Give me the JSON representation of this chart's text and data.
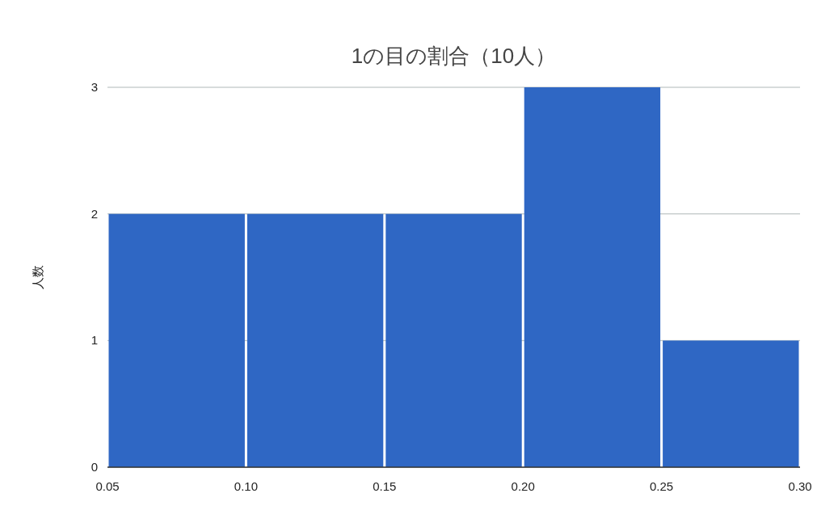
{
  "chart_data": {
    "type": "histogram",
    "title": "1の目の割合（10人）",
    "ylabel": "人数",
    "bins": [
      0.05,
      0.1,
      0.15,
      0.2,
      0.25,
      0.3
    ],
    "values": [
      2,
      2,
      2,
      3,
      1
    ],
    "color": "#2f67c4",
    "xlim": [
      0.05,
      0.3
    ],
    "xticks": [
      0.05,
      {
        "value": 0.1,
        "label": "0.10"
      },
      0.15,
      {
        "value": 0.2,
        "label": "0.20"
      },
      0.25,
      {
        "value": 0.3,
        "label": "0.30"
      }
    ],
    "ylim": [
      0,
      3
    ],
    "yticks": [
      0,
      1,
      2,
      3
    ],
    "grid": "y"
  }
}
